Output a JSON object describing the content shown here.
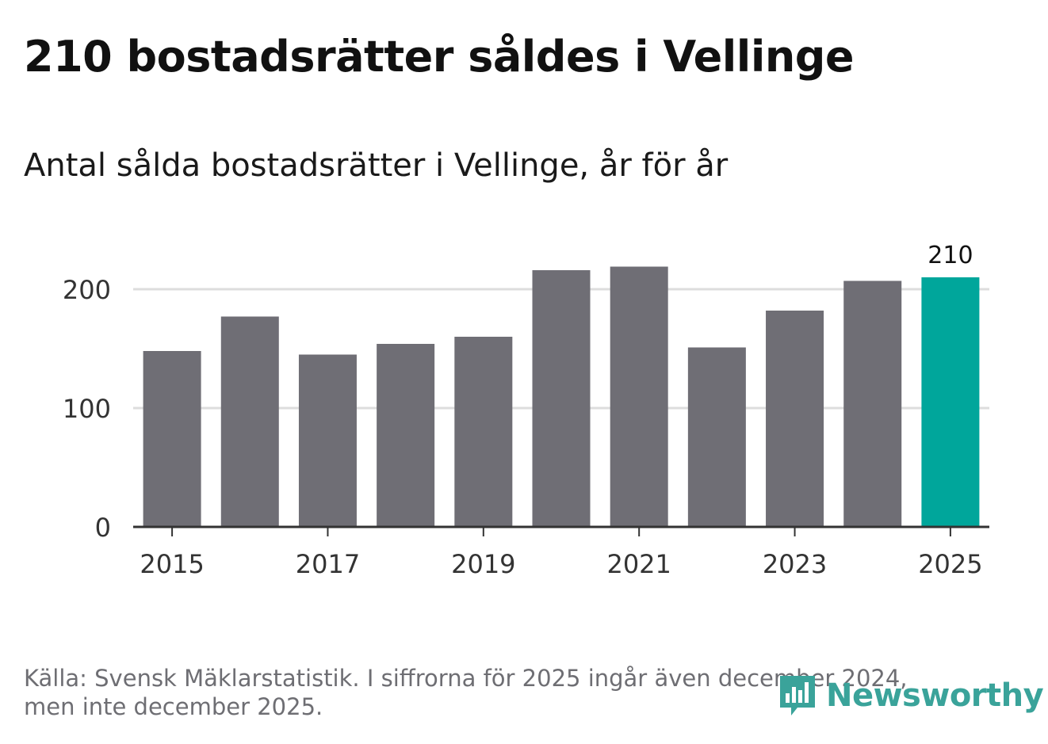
{
  "title": "210 bostadsrätter såldes i Vellinge",
  "subtitle": "Antal sålda bostadsrätter i Vellinge, år för år",
  "chart_data": {
    "type": "bar",
    "categories": [
      "2015",
      "2016",
      "2017",
      "2018",
      "2019",
      "2020",
      "2021",
      "2022",
      "2023",
      "2024",
      "2025"
    ],
    "values": [
      148,
      177,
      145,
      154,
      160,
      216,
      219,
      151,
      182,
      207,
      210
    ],
    "x_tick_labels": [
      "2015",
      "2017",
      "2019",
      "2021",
      "2023",
      "2025"
    ],
    "y_ticks": [
      0,
      100,
      200
    ],
    "ylim": [
      0,
      230
    ],
    "highlight_index": 10,
    "highlight_label": "210",
    "grid": true,
    "colors": {
      "bar": "#6f6e75",
      "highlight": "#00a69b",
      "grid": "#dddddd",
      "axis": "#333333",
      "tick_text": "#333333"
    }
  },
  "footer": {
    "line1": "Källa: Svensk Mäklarstatistik. I siffrorna för 2025 ingår även december 2024,",
    "line2": "men inte december 2025."
  },
  "brand": {
    "name": "Newsworthy",
    "color": "#3aa39a",
    "icon": "bar-chart-speech-bubble-icon"
  }
}
